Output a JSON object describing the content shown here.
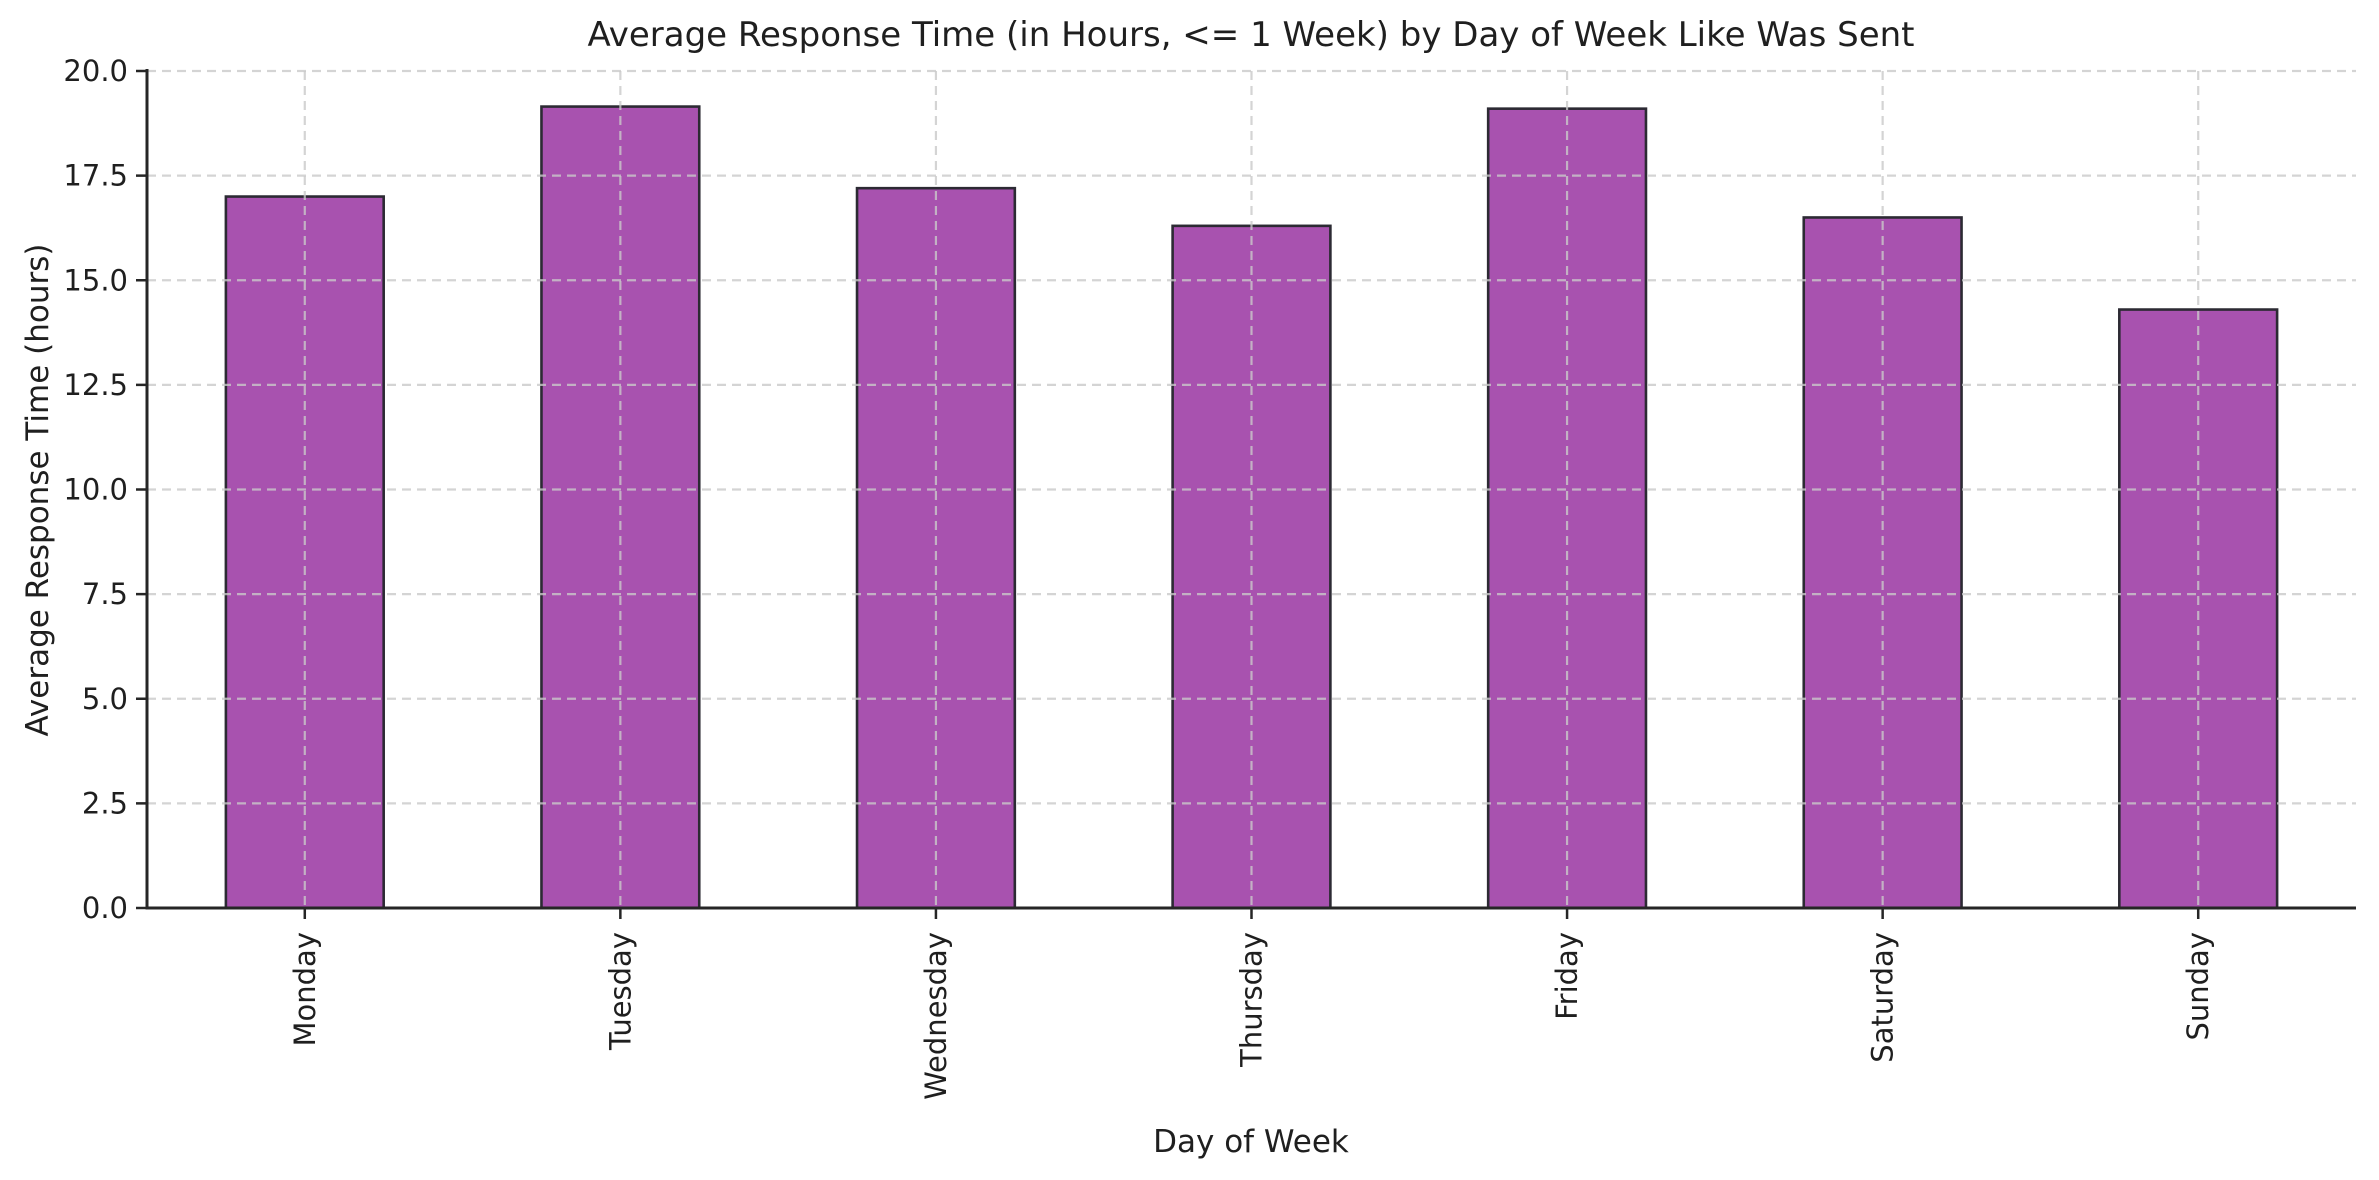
{
  "chart_data": {
    "type": "bar",
    "title": "Average Response Time (in Hours, <= 1 Week) by Day of Week Like Was Sent",
    "xlabel": "Day of Week",
    "ylabel": "Average Response Time (hours)",
    "categories": [
      "Monday",
      "Tuesday",
      "Wednesday",
      "Thursday",
      "Friday",
      "Saturday",
      "Sunday"
    ],
    "values": [
      17.0,
      19.15,
      17.2,
      16.3,
      19.1,
      16.5,
      14.3
    ],
    "ylim": [
      0,
      20
    ],
    "yticks": [
      0,
      2.5,
      5,
      7.5,
      10,
      12.5,
      15,
      17.5,
      20
    ],
    "ytick_labels": [
      "0.0",
      "2.5",
      "5.0",
      "7.5",
      "10.0",
      "12.5",
      "15.0",
      "17.5",
      "20.0"
    ],
    "x_tick_rotation": 90,
    "grid": "both, dashed, drawn above bars",
    "legend": "none",
    "bar_width_fraction": 0.5,
    "colors": {
      "bar_fill": "#a852af",
      "bar_edge": "#2c2a33",
      "grid": "#c9c9c9",
      "axis": "#262626",
      "text": "#1f1f1f",
      "background": "#ffffff"
    }
  }
}
